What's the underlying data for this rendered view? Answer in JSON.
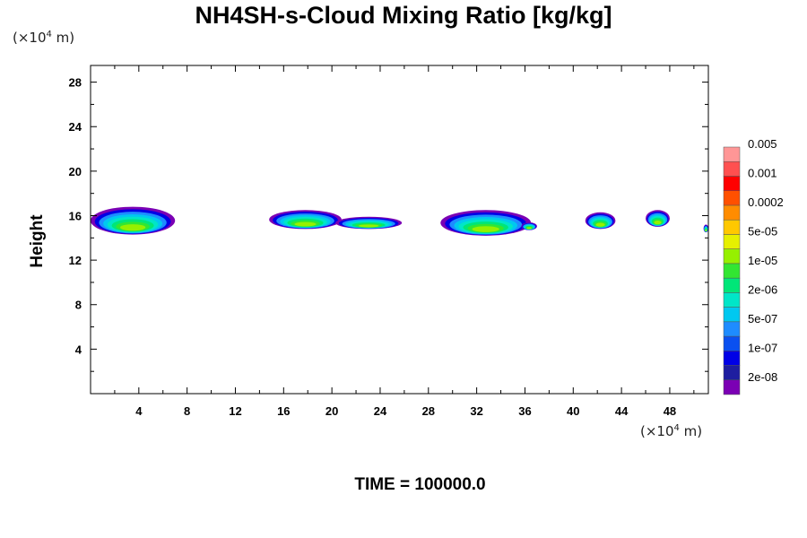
{
  "chart_data": {
    "type": "heatmap",
    "title": "NH4SH-s-Cloud Mixing Ratio [kg/kg]",
    "ylabel": "Height",
    "xlabel": "",
    "x_unit": "(×10⁴ m)",
    "y_unit": "(×10⁴ m)",
    "x_unit_parts": {
      "prefix": "(×10",
      "exp": "4",
      "suffix": " m)"
    },
    "y_unit_parts": {
      "prefix": "(×10",
      "exp": "4",
      "suffix": " m)"
    },
    "xlim": [
      0,
      51.2
    ],
    "ylim": [
      0,
      29.5
    ],
    "x_ticks": [
      4,
      8,
      12,
      16,
      20,
      24,
      28,
      32,
      36,
      40,
      44,
      48
    ],
    "y_ticks": [
      4,
      8,
      12,
      16,
      20,
      24,
      28
    ],
    "footer": "TIME = 100000.0",
    "colorbar": {
      "colors": [
        "#7b00b4",
        "#1e1ea0",
        "#0000e6",
        "#0a50f0",
        "#1e8cff",
        "#00c8f0",
        "#00e6c8",
        "#00e678",
        "#32e632",
        "#96f000",
        "#e6f000",
        "#ffc800",
        "#ff8c00",
        "#ff5000",
        "#ff0000",
        "#ff5050",
        "#ff9696"
      ],
      "labels": [
        "2e-08",
        "1e-07",
        "5e-07",
        "2e-06",
        "1e-05",
        "5e-05",
        "0.0002",
        "0.001",
        "0.005"
      ]
    },
    "clouds": [
      {
        "x": [
          0,
          7.0
        ],
        "y": [
          14.3,
          16.8
        ]
      },
      {
        "x": [
          14.8,
          20.8
        ],
        "y": [
          14.8,
          16.5
        ]
      },
      {
        "x": [
          20.3,
          25.8
        ],
        "y": [
          14.8,
          15.9
        ]
      },
      {
        "x": [
          29.0,
          36.5
        ],
        "y": [
          14.2,
          16.5
        ]
      },
      {
        "x": [
          35.7,
          37.0
        ],
        "y": [
          14.7,
          15.4
        ]
      },
      {
        "x": [
          41.0,
          43.5
        ],
        "y": [
          14.8,
          16.3
        ]
      },
      {
        "x": [
          46.0,
          48.0
        ],
        "y": [
          15.0,
          16.5
        ]
      },
      {
        "x": [
          50.8,
          51.2
        ],
        "y": [
          14.5,
          15.2
        ]
      }
    ]
  }
}
